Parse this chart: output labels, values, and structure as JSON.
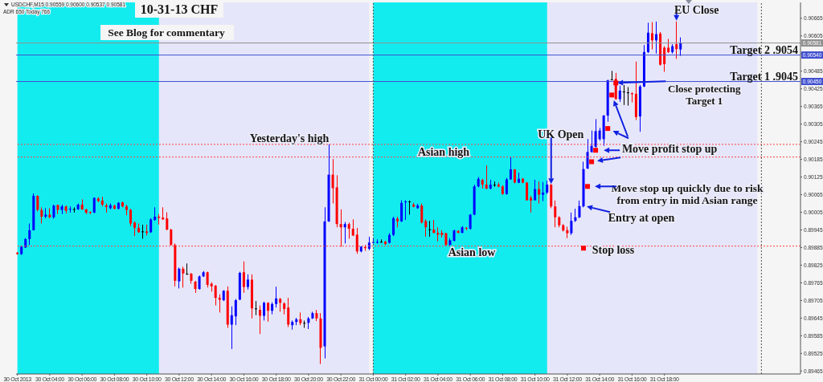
{
  "chart_data": {
    "type": "candlestick",
    "title": "10-31-13  CHF",
    "subtitle": "See Blog for commentary",
    "x": [
      "2013-10-30T02:00",
      "2013-10-30T02:15",
      "2013-10-30T02:30",
      "2013-10-30T02:45",
      "2013-10-30T03:00",
      "2013-10-30T03:15",
      "2013-10-30T03:30",
      "2013-10-30T03:45",
      "2013-10-30T04:00",
      "2013-10-30T04:15",
      "2013-10-30T04:30",
      "2013-10-30T04:45",
      "2013-10-30T05:00",
      "2013-10-30T05:15",
      "2013-10-30T05:30",
      "2013-10-30T05:45",
      "2013-10-30T06:00",
      "2013-10-30T06:15",
      "2013-10-30T06:30",
      "2013-10-30T06:45",
      "2013-10-30T07:00",
      "2013-10-30T07:15",
      "2013-10-30T07:30",
      "2013-10-30T07:45",
      "2013-10-30T08:00",
      "2013-10-30T08:15",
      "2013-10-30T08:30",
      "2013-10-30T08:45",
      "2013-10-30T09:00",
      "2013-10-30T09:15",
      "2013-10-30T09:30",
      "2013-10-30T09:45",
      "2013-10-30T10:00",
      "2013-10-30T10:15",
      "2013-10-30T10:30",
      "2013-10-30T10:45",
      "2013-10-30T11:00",
      "2013-10-30T11:15",
      "2013-10-30T11:30",
      "2013-10-30T11:45",
      "2013-10-30T12:00",
      "2013-10-30T12:15",
      "2013-10-30T12:30",
      "2013-10-30T12:45",
      "2013-10-30T13:00",
      "2013-10-30T13:15",
      "2013-10-30T13:30",
      "2013-10-30T13:45",
      "2013-10-30T14:00",
      "2013-10-30T14:15",
      "2013-10-30T14:30",
      "2013-10-30T14:45",
      "2013-10-30T15:00",
      "2013-10-30T15:15",
      "2013-10-30T15:30",
      "2013-10-30T15:45",
      "2013-10-30T16:00",
      "2013-10-30T16:15",
      "2013-10-30T16:30",
      "2013-10-30T16:45",
      "2013-10-30T17:00",
      "2013-10-30T17:15",
      "2013-10-30T17:30",
      "2013-10-30T17:45",
      "2013-10-30T18:00",
      "2013-10-30T18:15",
      "2013-10-30T18:30",
      "2013-10-30T18:45",
      "2013-10-30T19:00",
      "2013-10-30T19:15",
      "2013-10-30T19:30",
      "2013-10-30T19:45",
      "2013-10-30T20:00",
      "2013-10-30T20:15",
      "2013-10-30T20:30",
      "2013-10-30T20:45",
      "2013-10-30T21:00",
      "2013-10-30T21:15",
      "2013-10-30T21:30",
      "2013-10-30T21:45",
      "2013-10-30T22:00",
      "2013-10-30T22:15",
      "2013-10-30T22:30",
      "2013-10-30T22:45",
      "2013-10-30T23:00",
      "2013-10-30T23:15",
      "2013-10-30T23:30",
      "2013-10-30T23:45",
      "2013-10-31T00:00",
      "2013-10-31T00:15",
      "2013-10-31T00:30",
      "2013-10-31T00:45",
      "2013-10-31T01:00",
      "2013-10-31T01:15",
      "2013-10-31T01:30",
      "2013-10-31T01:45",
      "2013-10-31T02:00",
      "2013-10-31T02:15",
      "2013-10-31T02:30",
      "2013-10-31T02:45",
      "2013-10-31T03:00",
      "2013-10-31T03:15",
      "2013-10-31T03:30",
      "2013-10-31T03:45",
      "2013-10-31T04:00",
      "2013-10-31T04:15",
      "2013-10-31T04:30",
      "2013-10-31T04:45",
      "2013-10-31T05:00",
      "2013-10-31T05:15",
      "2013-10-31T05:30",
      "2013-10-31T05:45",
      "2013-10-31T06:00",
      "2013-10-31T06:15",
      "2013-10-31T06:30",
      "2013-10-31T06:45",
      "2013-10-31T07:00",
      "2013-10-31T07:15",
      "2013-10-31T07:30",
      "2013-10-31T07:45",
      "2013-10-31T08:00",
      "2013-10-31T08:15",
      "2013-10-31T08:30",
      "2013-10-31T08:45",
      "2013-10-31T09:00",
      "2013-10-31T09:15",
      "2013-10-31T09:30",
      "2013-10-31T09:45",
      "2013-10-31T10:00",
      "2013-10-31T10:15",
      "2013-10-31T10:30",
      "2013-10-31T10:45",
      "2013-10-31T11:00",
      "2013-10-31T11:15",
      "2013-10-31T11:30",
      "2013-10-31T11:45",
      "2013-10-31T12:00",
      "2013-10-31T12:15",
      "2013-10-31T12:30",
      "2013-10-31T12:45",
      "2013-10-31T13:00",
      "2013-10-31T13:15",
      "2013-10-31T13:30",
      "2013-10-31T13:45",
      "2013-10-31T14:00",
      "2013-10-31T14:15",
      "2013-10-31T14:30",
      "2013-10-31T14:45",
      "2013-10-31T15:00",
      "2013-10-31T15:15",
      "2013-10-31T15:30",
      "2013-10-31T15:45",
      "2013-10-31T16:00",
      "2013-10-31T16:15",
      "2013-10-31T16:30",
      "2013-10-31T16:45",
      "2013-10-31T17:00",
      "2013-10-31T17:15",
      "2013-10-31T17:30",
      "2013-10-31T17:45",
      "2013-10-31T18:00",
      "2013-10-31T18:15",
      "2013-10-31T18:30",
      "2013-10-31T18:45",
      "2013-10-31T19:00"
    ],
    "ohlc": [
      [
        0.89867,
        0.8987,
        0.89861,
        0.89863
      ],
      [
        0.89863,
        0.89892,
        0.8986,
        0.89888
      ],
      [
        0.89885,
        0.89917,
        0.89884,
        0.89914
      ],
      [
        0.89914,
        0.89967,
        0.89894,
        0.89944
      ],
      [
        0.89944,
        0.90069,
        0.89943,
        0.90061
      ],
      [
        0.90061,
        0.90063,
        0.90008,
        0.90013
      ],
      [
        0.90013,
        0.90022,
        0.89967,
        0.8999
      ],
      [
        0.8999,
        0.90019,
        0.89985,
        0.89997
      ],
      [
        0.89997,
        0.90019,
        0.89985,
        0.89988
      ],
      [
        0.89988,
        0.90031,
        0.89983,
        0.90028
      ],
      [
        0.9003,
        0.90031,
        0.89999,
        0.90013
      ],
      [
        0.90013,
        0.90031,
        0.89999,
        0.90025
      ],
      [
        0.90025,
        0.90028,
        0.90001,
        0.9001
      ],
      [
        0.90014,
        0.90025,
        0.90004,
        0.90017
      ],
      [
        0.90016,
        0.90022,
        0.90004,
        0.90016
      ],
      [
        0.90015,
        0.90035,
        0.90013,
        0.90031
      ],
      [
        0.90031,
        0.90049,
        0.90013,
        0.90015
      ],
      [
        0.90015,
        0.90017,
        0.89999,
        0.90004
      ],
      [
        0.90006,
        0.90008,
        0.89999,
        0.90003
      ],
      [
        0.90004,
        0.90056,
        0.90002,
        0.90054
      ],
      [
        0.90052,
        0.90056,
        0.9004,
        0.90043
      ],
      [
        0.90045,
        0.90058,
        0.90025,
        0.90031
      ],
      [
        0.90028,
        0.90035,
        0.90004,
        0.90023
      ],
      [
        0.90019,
        0.90035,
        0.90015,
        0.90029
      ],
      [
        0.90028,
        0.90031,
        0.90015,
        0.90017
      ],
      [
        0.90017,
        0.9004,
        0.90015,
        0.90037
      ],
      [
        0.90039,
        0.90041,
        0.90022,
        0.90025
      ],
      [
        0.90025,
        0.90031,
        0.89995,
        0.90013
      ],
      [
        0.90013,
        0.90017,
        0.89958,
        0.89967
      ],
      [
        0.8997,
        0.89974,
        0.89924,
        0.89952
      ],
      [
        0.89952,
        0.89967,
        0.89935,
        0.89937
      ],
      [
        0.8994,
        0.89963,
        0.89915,
        0.8994
      ],
      [
        0.8994,
        0.89963,
        0.89926,
        0.89935
      ],
      [
        0.89937,
        0.89985,
        0.89935,
        0.89981
      ],
      [
        0.89979,
        0.90022,
        0.89976,
        0.8999
      ],
      [
        0.8999,
        0.89999,
        0.89963,
        0.89986
      ],
      [
        0.89987,
        0.90022,
        0.89979,
        0.89981
      ],
      [
        0.89984,
        0.90005,
        0.89944,
        0.89946
      ],
      [
        0.89946,
        0.89949,
        0.89892,
        0.89894
      ],
      [
        0.89894,
        0.89899,
        0.89753,
        0.89772
      ],
      [
        0.8977,
        0.89817,
        0.89746,
        0.89813
      ],
      [
        0.89813,
        0.8982,
        0.89749,
        0.89797
      ],
      [
        0.89796,
        0.89831,
        0.89792,
        0.89796
      ],
      [
        0.89796,
        0.89799,
        0.89762,
        0.89772
      ],
      [
        0.89769,
        0.89772,
        0.89731,
        0.89744
      ],
      [
        0.89744,
        0.8979,
        0.89742,
        0.89787
      ],
      [
        0.89787,
        0.89805,
        0.89785,
        0.89801
      ],
      [
        0.89801,
        0.89803,
        0.89749,
        0.89758
      ],
      [
        0.89762,
        0.89767,
        0.89735,
        0.89753
      ],
      [
        0.89755,
        0.89758,
        0.89688,
        0.89714
      ],
      [
        0.89714,
        0.89726,
        0.89664,
        0.89708
      ],
      [
        0.89706,
        0.8974,
        0.89703,
        0.89738
      ],
      [
        0.89738,
        0.89753,
        0.89612,
        0.89623
      ],
      [
        0.89623,
        0.89685,
        0.8954,
        0.89655
      ],
      [
        0.89651,
        0.8971,
        0.89621,
        0.89706
      ],
      [
        0.89708,
        0.89803,
        0.89706,
        0.89799
      ],
      [
        0.89801,
        0.89838,
        0.89731,
        0.89751
      ],
      [
        0.89751,
        0.89794,
        0.89742,
        0.89776
      ],
      [
        0.89776,
        0.89794,
        0.89644,
        0.89678
      ],
      [
        0.89678,
        0.89703,
        0.89655,
        0.89678
      ],
      [
        0.89673,
        0.89688,
        0.89591,
        0.89653
      ],
      [
        0.89653,
        0.89701,
        0.89637,
        0.89697
      ],
      [
        0.89697,
        0.89699,
        0.89633,
        0.8967
      ],
      [
        0.8967,
        0.89699,
        0.89658,
        0.89693
      ],
      [
        0.89693,
        0.89752,
        0.89681,
        0.89712
      ],
      [
        0.8971,
        0.89714,
        0.89667,
        0.89697
      ],
      [
        0.89695,
        0.89699,
        0.89658,
        0.89676
      ],
      [
        0.89681,
        0.89714,
        0.89615,
        0.89623
      ],
      [
        0.89621,
        0.89637,
        0.89606,
        0.89632
      ],
      [
        0.89632,
        0.89646,
        0.89621,
        0.89641
      ],
      [
        0.89641,
        0.89664,
        0.89621,
        0.89628
      ],
      [
        0.89629,
        0.89637,
        0.89612,
        0.89629
      ],
      [
        0.89629,
        0.89649,
        0.89608,
        0.89644
      ],
      [
        0.89644,
        0.89667,
        0.89642,
        0.89662
      ],
      [
        0.89662,
        0.89673,
        0.89635,
        0.89644
      ],
      [
        0.89644,
        0.89662,
        0.89489,
        0.89544
      ],
      [
        0.89549,
        0.90022,
        0.89508,
        0.89974
      ],
      [
        0.89974,
        0.90236,
        0.89972,
        0.90133
      ],
      [
        0.90133,
        0.90186,
        0.90035,
        0.90087
      ],
      [
        0.9009,
        0.90131,
        0.89954,
        0.89965
      ],
      [
        0.89965,
        0.90015,
        0.89888,
        0.89954
      ],
      [
        0.89954,
        0.89972,
        0.89899,
        0.89965
      ],
      [
        0.89965,
        0.8997,
        0.89915,
        0.89949
      ],
      [
        0.89949,
        0.89981,
        0.89924,
        0.89926
      ],
      [
        0.89929,
        0.89952,
        0.89864,
        0.89872
      ],
      [
        0.89872,
        0.8989,
        0.89869,
        0.89888
      ],
      [
        0.89887,
        0.89894,
        0.89874,
        0.89883
      ],
      [
        0.89881,
        0.89922,
        0.89876,
        0.89902
      ],
      [
        0.89901,
        0.89915,
        0.89899,
        0.89904
      ],
      [
        0.89901,
        0.89913,
        0.89899,
        0.89904
      ],
      [
        0.89905,
        0.89913,
        0.89901,
        0.89905
      ],
      [
        0.89905,
        0.89908,
        0.89894,
        0.89897
      ],
      [
        0.89901,
        0.89934,
        0.89899,
        0.89928
      ],
      [
        0.89928,
        0.8999,
        0.89924,
        0.89985
      ],
      [
        0.89983,
        0.8999,
        0.89954,
        0.89974
      ],
      [
        0.89974,
        0.90046,
        0.89972,
        0.90037
      ],
      [
        0.90039,
        0.90046,
        0.89979,
        0.90042
      ],
      [
        0.90042,
        0.90045,
        0.89997,
        0.90042
      ],
      [
        0.90031,
        0.90037,
        0.90022,
        0.90024
      ],
      [
        0.90019,
        0.90034,
        0.90017,
        0.90028
      ],
      [
        0.90028,
        0.90035,
        0.89967,
        0.8997
      ],
      [
        0.89975,
        0.89981,
        0.89922,
        0.89954
      ],
      [
        0.89947,
        0.89976,
        0.89922,
        0.89947
      ],
      [
        0.89946,
        0.89979,
        0.89934,
        0.89935
      ],
      [
        0.89935,
        0.89954,
        0.89906,
        0.89929
      ],
      [
        0.89935,
        0.89944,
        0.89919,
        0.89928
      ],
      [
        0.89934,
        0.89935,
        0.8989,
        0.89894
      ],
      [
        0.89894,
        0.89917,
        0.8989,
        0.8991
      ],
      [
        0.89908,
        0.89946,
        0.89906,
        0.89943
      ],
      [
        0.89942,
        0.89944,
        0.89934,
        0.89935
      ],
      [
        0.89935,
        0.89958,
        0.89934,
        0.89954
      ],
      [
        0.89952,
        0.89955,
        0.89944,
        0.89949
      ],
      [
        0.89949,
        0.89999,
        0.89946,
        0.89997
      ],
      [
        0.89997,
        0.90099,
        0.89995,
        0.90093
      ],
      [
        0.90093,
        0.90125,
        0.9009,
        0.90119
      ],
      [
        0.90115,
        0.90119,
        0.90086,
        0.90099
      ],
      [
        0.90099,
        0.90165,
        0.90083,
        0.90086
      ],
      [
        0.90086,
        0.90116,
        0.90083,
        0.90099
      ],
      [
        0.90099,
        0.9011,
        0.90092,
        0.90099
      ],
      [
        0.90099,
        0.90106,
        0.9009,
        0.90093
      ],
      [
        0.90093,
        0.90097,
        0.90065,
        0.90067
      ],
      [
        0.90067,
        0.90122,
        0.90065,
        0.90117
      ],
      [
        0.90117,
        0.90192,
        0.90116,
        0.90151
      ],
      [
        0.90151,
        0.90152,
        0.90104,
        0.90106
      ],
      [
        0.90106,
        0.9014,
        0.90104,
        0.90119
      ],
      [
        0.90119,
        0.90122,
        0.90104,
        0.90106
      ],
      [
        0.90106,
        0.90108,
        0.90045,
        0.90046
      ],
      [
        0.90054,
        0.90061,
        0.90004,
        0.90045
      ],
      [
        0.90046,
        0.90116,
        0.90045,
        0.90084
      ],
      [
        0.90084,
        0.9011,
        0.90035,
        0.90065
      ],
      [
        0.90065,
        0.90108,
        0.90043,
        0.90072
      ],
      [
        0.90072,
        0.90113,
        0.90067,
        0.90099
      ],
      [
        0.90099,
        0.90101,
        0.90019,
        0.90025
      ],
      [
        0.90025,
        0.90045,
        0.89954,
        0.89988
      ],
      [
        0.89988,
        0.89992,
        0.89954,
        0.89961
      ],
      [
        0.89961,
        0.89965,
        0.8994,
        0.89943
      ],
      [
        0.89944,
        0.89956,
        0.89917,
        0.89934
      ],
      [
        0.89934,
        0.90004,
        0.89928,
        0.89976
      ],
      [
        0.89976,
        0.90017,
        0.89972,
        0.89988
      ],
      [
        0.89988,
        0.90045,
        0.89985,
        0.90026
      ],
      [
        0.90025,
        0.90177,
        0.90022,
        0.90152
      ],
      [
        0.90154,
        0.90254,
        0.90152,
        0.9021
      ],
      [
        0.9021,
        0.90283,
        0.90208,
        0.90231
      ],
      [
        0.90228,
        0.90322,
        0.90225,
        0.90281
      ],
      [
        0.90254,
        0.90292,
        0.90249,
        0.90283
      ],
      [
        0.90254,
        0.90336,
        0.90231,
        0.90334
      ],
      [
        0.90334,
        0.90456,
        0.90313,
        0.90454
      ],
      [
        0.90457,
        0.90486,
        0.90454,
        0.90457
      ],
      [
        0.90459,
        0.90479,
        0.90388,
        0.9039
      ],
      [
        0.9039,
        0.90436,
        0.90381,
        0.90419
      ],
      [
        0.90416,
        0.90438,
        0.9037,
        0.90416
      ],
      [
        0.90413,
        0.90431,
        0.90368,
        0.90413
      ],
      [
        0.9041,
        0.90413,
        0.90379,
        0.90407
      ],
      [
        0.90408,
        0.90518,
        0.90319,
        0.90329
      ],
      [
        0.90331,
        0.90438,
        0.90279,
        0.90433
      ],
      [
        0.90433,
        0.90574,
        0.90431,
        0.9055
      ],
      [
        0.9055,
        0.9065,
        0.90547,
        0.90616
      ],
      [
        0.90614,
        0.90652,
        0.90559,
        0.9059
      ],
      [
        0.9059,
        0.90654,
        0.90545,
        0.90611
      ],
      [
        0.90613,
        0.90618,
        0.90504,
        0.90507
      ],
      [
        0.90565,
        0.9057,
        0.90483,
        0.90509
      ],
      [
        0.90565,
        0.90595,
        0.90547,
        0.9055
      ],
      [
        0.9055,
        0.90577,
        0.90545,
        0.9057
      ],
      [
        0.90577,
        0.90654,
        0.90527,
        0.9056
      ],
      [
        0.90559,
        0.906,
        0.90537,
        0.90581
      ]
    ],
    "colors": [
      "#ff0000",
      "#0000ff",
      "#0000ff",
      "#0000ff",
      "#0000ff",
      "#ff0000",
      "#ff0000",
      "#0000ff",
      "#ff0000",
      "#0000ff",
      "#ff0000",
      "#0000ff",
      "#ff0000",
      "#0000ff",
      "#000000",
      "#0000ff",
      "#ff0000",
      "#ff0000",
      "#ff0000",
      "#0000ff",
      "#ff0000",
      "#ff0000",
      "#ff0000",
      "#0000ff",
      "#ff0000",
      "#0000ff",
      "#ff0000",
      "#ff0000",
      "#ff0000",
      "#ff0000",
      "#ff0000",
      "#000000",
      "#ff0000",
      "#0000ff",
      "#0000ff",
      "#ff0000",
      "#ff0000",
      "#ff0000",
      "#ff0000",
      "#ff0000",
      "#0000ff",
      "#ff0000",
      "#000000",
      "#ff0000",
      "#ff0000",
      "#0000ff",
      "#0000ff",
      "#ff0000",
      "#ff0000",
      "#ff0000",
      "#ff0000",
      "#0000ff",
      "#ff0000",
      "#0000ff",
      "#0000ff",
      "#0000ff",
      "#ff0000",
      "#0000ff",
      "#ff0000",
      "#000000",
      "#ff0000",
      "#0000ff",
      "#ff0000",
      "#0000ff",
      "#0000ff",
      "#ff0000",
      "#ff0000",
      "#ff0000",
      "#0000ff",
      "#0000ff",
      "#ff0000",
      "#000000",
      "#0000ff",
      "#0000ff",
      "#ff0000",
      "#ff0000",
      "#0000ff",
      "#0000ff",
      "#ff0000",
      "#ff0000",
      "#ff0000",
      "#0000ff",
      "#ff0000",
      "#ff0000",
      "#ff0000",
      "#0000ff",
      "#ff0000",
      "#0000ff",
      "#0000ff",
      "#0000ff",
      "#000000",
      "#ff0000",
      "#0000ff",
      "#0000ff",
      "#ff0000",
      "#0000ff",
      "#0000ff",
      "#000000",
      "#ff0000",
      "#0000ff",
      "#ff0000",
      "#ff0000",
      "#000000",
      "#ff0000",
      "#ff0000",
      "#ff0000",
      "#ff0000",
      "#0000ff",
      "#0000ff",
      "#ff0000",
      "#0000ff",
      "#ff0000",
      "#0000ff",
      "#0000ff",
      "#0000ff",
      "#ff0000",
      "#ff0000",
      "#0000ff",
      "#000000",
      "#ff0000",
      "#ff0000",
      "#0000ff",
      "#0000ff",
      "#ff0000",
      "#0000ff",
      "#ff0000",
      "#ff0000",
      "#ff0000",
      "#0000ff",
      "#ff0000",
      "#0000ff",
      "#0000ff",
      "#ff0000",
      "#ff0000",
      "#ff0000",
      "#ff0000",
      "#ff0000",
      "#0000ff",
      "#0000ff",
      "#0000ff",
      "#0000ff",
      "#0000ff",
      "#0000ff",
      "#0000ff",
      "#0000ff",
      "#0000ff",
      "#0000ff",
      "#000000",
      "#ff0000",
      "#0000ff",
      "#000000",
      "#000000",
      "#ff0000",
      "#ff0000",
      "#0000ff",
      "#0000ff",
      "#0000ff",
      "#ff0000",
      "#0000ff",
      "#ff0000",
      "#ff0000",
      "#ff0000",
      "#0000ff",
      "#ff0000",
      "#0000ff"
    ],
    "marker": "square",
    "series": [
      {
        "type": "scatter",
        "color": "#ff0000",
        "x": [
          "2013-10-31T13:00",
          "2013-10-31T13:15",
          "2013-10-31T13:30",
          "2013-10-31T13:45",
          "2013-10-31T14:30",
          "2013-10-31T14:45",
          "2013-10-31T15:00"
        ],
        "values": [
          0.89883,
          0.90093,
          0.90177,
          0.90216,
          0.9029,
          0.90404,
          0.90445
        ]
      }
    ],
    "xlim": [
      "2013-10-30T01:55",
      "2013-11-01T02:25"
    ],
    "xticks": [
      {
        "value": "2013-10-30T02:00",
        "label": "30 Oct 2013"
      },
      {
        "value": "2013-10-30T04:00",
        "label": "30 Oct 04:00"
      },
      {
        "value": "2013-10-30T06:00",
        "label": "30 Oct 06:00"
      },
      {
        "value": "2013-10-30T08:00",
        "label": "30 Oct 08:00"
      },
      {
        "value": "2013-10-30T10:00",
        "label": "30 Oct 10:00"
      },
      {
        "value": "2013-10-30T12:00",
        "label": "30 Oct 12:00"
      },
      {
        "value": "2013-10-30T14:00",
        "label": "30 Oct 14:00"
      },
      {
        "value": "2013-10-30T16:00",
        "label": "30 Oct 16:00"
      },
      {
        "value": "2013-10-30T18:00",
        "label": "30 Oct 18:00"
      },
      {
        "value": "2013-10-30T20:00",
        "label": "30 Oct 20:00"
      },
      {
        "value": "2013-10-30T22:00",
        "label": "30 Oct 22:00"
      },
      {
        "value": "2013-10-31T00:00",
        "label": "31 Oct 00:00"
      },
      {
        "value": "2013-10-31T02:00",
        "label": "31 Oct 02:00"
      },
      {
        "value": "2013-10-31T04:00",
        "label": "31 Oct 04:00"
      },
      {
        "value": "2013-10-31T06:00",
        "label": "31 Oct 06:00"
      },
      {
        "value": "2013-10-31T08:00",
        "label": "31 Oct 08:00"
      },
      {
        "value": "2013-10-31T10:00",
        "label": "31 Oct 10:00"
      },
      {
        "value": "2013-10-31T12:00",
        "label": "31 Oct 12:00"
      },
      {
        "value": "2013-10-31T14:00",
        "label": "31 Oct 14:00"
      },
      {
        "value": "2013-10-31T16:00",
        "label": "31 Oct 16:00"
      },
      {
        "value": "2013-10-31T18:00",
        "label": "31 Oct 18:00"
      }
    ],
    "ylim": [
      0.89455,
      0.90719
    ],
    "yticks": [
      0.90665,
      0.90605,
      0.90545,
      0.90485,
      0.90425,
      0.90365,
      0.90305,
      0.90245,
      0.90185,
      0.90125,
      0.90065,
      0.90005,
      0.89945,
      0.89885,
      0.89825,
      0.89765,
      0.89705,
      0.89645,
      0.89585,
      0.89525,
      0.89465
    ],
    "bands": [
      {
        "axis": "x",
        "from": "2013-10-30T02:00",
        "to": "2013-10-30T23:45",
        "color": "#e6e6fa"
      },
      {
        "axis": "x",
        "from": "2013-10-31T00:00",
        "to": "2013-10-31T23:45",
        "color": "#e6e6fa"
      },
      {
        "axis": "x",
        "from": "2013-10-30T02:00",
        "to": "2013-10-30T10:45",
        "color": "#13ecef"
      },
      {
        "axis": "x",
        "from": "2013-10-31T00:00",
        "to": "2013-10-31T10:45",
        "color": "#13ecef"
      }
    ],
    "ref_lines": [
      {
        "axis": "y",
        "value": 0.90581,
        "color": "#909090",
        "line_style": "solid"
      },
      {
        "axis": "y",
        "value": 0.9054,
        "label": "Target 2  .9054",
        "color": "#4050d0",
        "line_style": "solid"
      },
      {
        "axis": "y",
        "value": 0.9045,
        "label": "Target 1  .9045",
        "color": "#4050d0",
        "line_style": "solid"
      },
      {
        "axis": "y",
        "value": 0.90236,
        "color": "#ff4040",
        "line_style": "dotted"
      },
      {
        "axis": "y",
        "value": 0.90193,
        "color": "#ff4040",
        "line_style": "dotted"
      },
      {
        "axis": "y",
        "value": 0.8989,
        "color": "#ff4040",
        "line_style": "dotted"
      },
      {
        "axis": "x",
        "value": "2013-10-31T00:00",
        "color": "#505050",
        "line_style": "dotted"
      },
      {
        "axis": "x",
        "value": "2013-11-01T00:00",
        "color": "#505050",
        "line_style": "dotted"
      }
    ],
    "annotations": [
      "USDCHF,M15  0.90559 0.90600 0.90537 0.90581",
      "ADR 650  Today 766",
      {
        "text": "Yesterday's high",
        "x": "2013-10-30T21:15",
        "y": 0.90236
      },
      {
        "text": "Asian high",
        "x": "2013-10-31T05:00",
        "y": 0.90193
      },
      {
        "text": "Asian low",
        "x": "2013-10-31T05:00",
        "y": 0.8989
      },
      {
        "text": "UK Open",
        "x": "2013-10-31T11:00",
        "y": 0.90101
      },
      {
        "text": "EU Close",
        "x": "2013-10-31T18:45",
        "y": 0.90654
      },
      {
        "text": "Close protecting\nTarget 1",
        "x": "2013-10-31T15:00",
        "y": 0.90445
      },
      {
        "text": "Move profit stop up",
        "x": "2013-10-31T13:45",
        "y": 0.90216
      },
      {
        "text": "Move stop up quickly due to risk\nfrom entry in mid Asian range",
        "x": "2013-10-31T13:15",
        "y": 0.90093
      },
      {
        "text": "Entry at open",
        "x": "2013-10-31T13:00",
        "y": 0.90025
      },
      {
        "text": "Stop loss",
        "x": "2013-10-31T13:00",
        "y": 0.89883
      },
      {
        "text": "0.90581",
        "y": 0.90581
      },
      {
        "text": "0.90540",
        "y": 0.9054
      },
      {
        "text": "0.90450",
        "y": 0.9045
      }
    ]
  }
}
